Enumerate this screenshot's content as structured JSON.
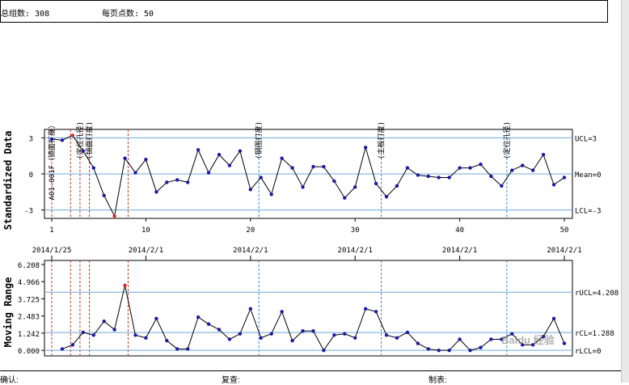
{
  "header": {
    "total_groups": "总组数: 308",
    "points_per_page": "每页点数: 50"
  },
  "footer": {
    "confirm": "确认:",
    "review": "复查:",
    "prepared": "制表:"
  },
  "watermark": "Baidu 经验",
  "chart_data": [
    {
      "type": "line",
      "ylabel": "Standardized Data",
      "ylim": [
        -3.7,
        3.7
      ],
      "x": [
        1,
        2,
        3,
        4,
        5,
        6,
        7,
        8,
        9,
        10,
        11,
        12,
        13,
        14,
        15,
        16,
        17,
        18,
        19,
        20,
        21,
        22,
        23,
        24,
        25,
        26,
        27,
        28,
        29,
        30,
        31,
        32,
        33,
        34,
        35,
        36,
        37,
        38,
        39,
        40,
        41,
        42,
        43,
        44,
        45,
        46,
        47,
        48,
        49,
        50
      ],
      "values": [
        2.9,
        2.8,
        3.2,
        1.9,
        0.5,
        -1.8,
        -3.5,
        1.3,
        0.1,
        1.2,
        -1.5,
        -0.7,
        -0.5,
        -0.7,
        2.0,
        0.1,
        1.6,
        0.7,
        1.9,
        -1.3,
        -0.3,
        -1.7,
        1.3,
        0.5,
        -1.1,
        0.6,
        0.6,
        -0.6,
        -2.0,
        -1.1,
        2.2,
        -0.8,
        -1.9,
        -1.0,
        0.5,
        -0.1,
        -0.2,
        -0.3,
        -0.3,
        0.5,
        0.5,
        0.8,
        -0.2,
        -1.0,
        0.3,
        0.7,
        0.3,
        1.6,
        -0.9,
        -0.3
      ],
      "out_of_control_points": [
        3,
        7
      ],
      "xticks": [
        1,
        10,
        20,
        30,
        40,
        50
      ],
      "xtick_labels": [
        "1",
        "10",
        "20",
        "30",
        "40",
        "50"
      ],
      "yticks": [
        3,
        0,
        -3
      ],
      "ytick_labels": [
        "3",
        "0",
        "-3"
      ],
      "limits": [
        {
          "label": "UCL=3",
          "value": 3
        },
        {
          "label": "Mean=0",
          "value": 0
        },
        {
          "label": "LCL=-3",
          "value": -3
        }
      ],
      "events": [
        {
          "x": 1.0,
          "text": "A01-001F（镜面打度）",
          "color": "#c0392b"
        },
        {
          "x": 2.8,
          "text": "",
          "color": "#c0392b"
        },
        {
          "x": 3.7,
          "text": "(定位孔径)",
          "color": "#c0392b"
        },
        {
          "x": 4.6,
          "text": "(镜面打度)",
          "color": "#c0392b"
        },
        {
          "x": 8.3,
          "text": "",
          "color": "#c0392b"
        },
        {
          "x": 20.8,
          "text": "(钢图打度)",
          "color": "#4a86c8"
        },
        {
          "x": 32.5,
          "text": "(主板打度)",
          "color": "#4a86c8"
        },
        {
          "x": 44.5,
          "text": "(定位孔径)",
          "color": "#4a86c8"
        }
      ],
      "date_labels": [
        {
          "x": 1,
          "text": "2014/1/25"
        },
        {
          "x": 10,
          "text": "2014/2/1"
        },
        {
          "x": 20,
          "text": "2014/2/1"
        },
        {
          "x": 30,
          "text": "2014/2/1"
        },
        {
          "x": 40,
          "text": "2014/2/1"
        },
        {
          "x": 50,
          "text": "2014/2/1"
        }
      ],
      "grid": false
    },
    {
      "type": "line",
      "ylabel": "Moving Range",
      "ylim": [
        -0.4,
        6.5
      ],
      "x": [
        2,
        3,
        4,
        5,
        6,
        7,
        8,
        9,
        10,
        11,
        12,
        13,
        14,
        15,
        16,
        17,
        18,
        19,
        20,
        21,
        22,
        23,
        24,
        25,
        26,
        27,
        28,
        29,
        30,
        31,
        32,
        33,
        34,
        35,
        36,
        37,
        38,
        39,
        40,
        41,
        42,
        43,
        44,
        45,
        46,
        47,
        48,
        49,
        50
      ],
      "values": [
        0.1,
        0.4,
        1.3,
        1.1,
        2.1,
        1.5,
        4.7,
        1.1,
        0.9,
        2.3,
        0.7,
        0.1,
        0.1,
        2.4,
        1.9,
        1.5,
        0.8,
        1.2,
        3.0,
        0.9,
        1.2,
        2.8,
        0.7,
        1.4,
        1.4,
        0.0,
        1.1,
        1.2,
        0.9,
        3.0,
        2.8,
        1.1,
        0.9,
        1.3,
        0.5,
        0.1,
        0.0,
        0.0,
        0.8,
        0.0,
        0.2,
        0.8,
        0.8,
        1.2,
        0.4,
        0.4,
        1.0,
        2.3,
        0.5
      ],
      "out_of_control_points": [
        8
      ],
      "yticks": [
        6.208,
        4.966,
        3.725,
        2.483,
        1.242,
        0.0
      ],
      "ytick_labels": [
        "6.208",
        "4.966",
        "3.725",
        "2.483",
        "1.242",
        "0.000"
      ],
      "limits": [
        {
          "label": "rUCL=4.208",
          "value": 4.208
        },
        {
          "label": "rCL=1.288",
          "value": 1.288
        },
        {
          "label": "rLCL=0",
          "value": 0
        }
      ],
      "grid": false
    }
  ]
}
